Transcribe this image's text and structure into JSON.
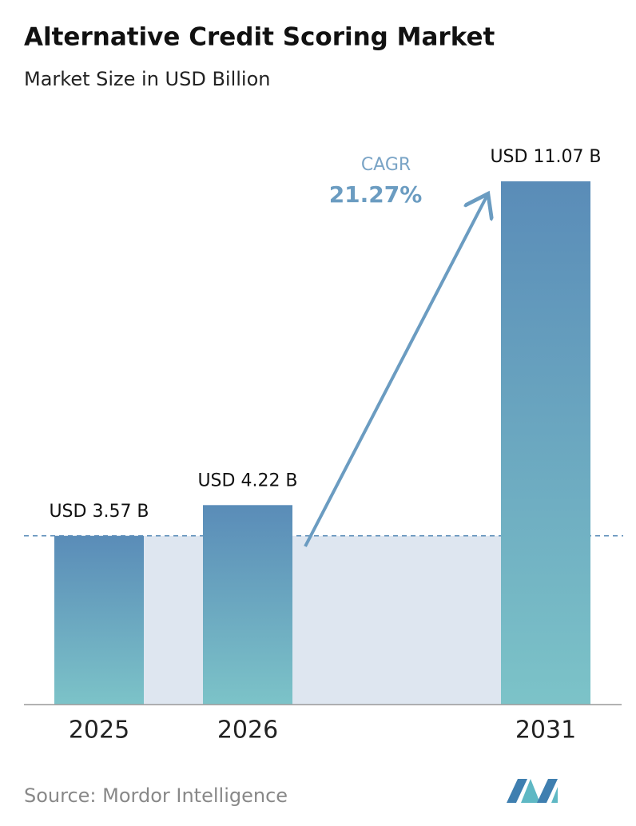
{
  "chart_data": {
    "type": "bar",
    "title": "Alternative Credit Scoring Market",
    "subtitle": "Market Size in USD Billion",
    "categories": [
      "2025",
      "2026",
      "2031"
    ],
    "values": [
      3.57,
      4.22,
      11.07
    ],
    "value_labels": [
      "USD 3.57 B",
      "USD 4.22 B",
      "USD 11.07 B"
    ],
    "annotations": {
      "cagr_label": "CAGR",
      "cagr_value": "21.27%"
    },
    "source": "Source: Mordor Intelligence"
  }
}
